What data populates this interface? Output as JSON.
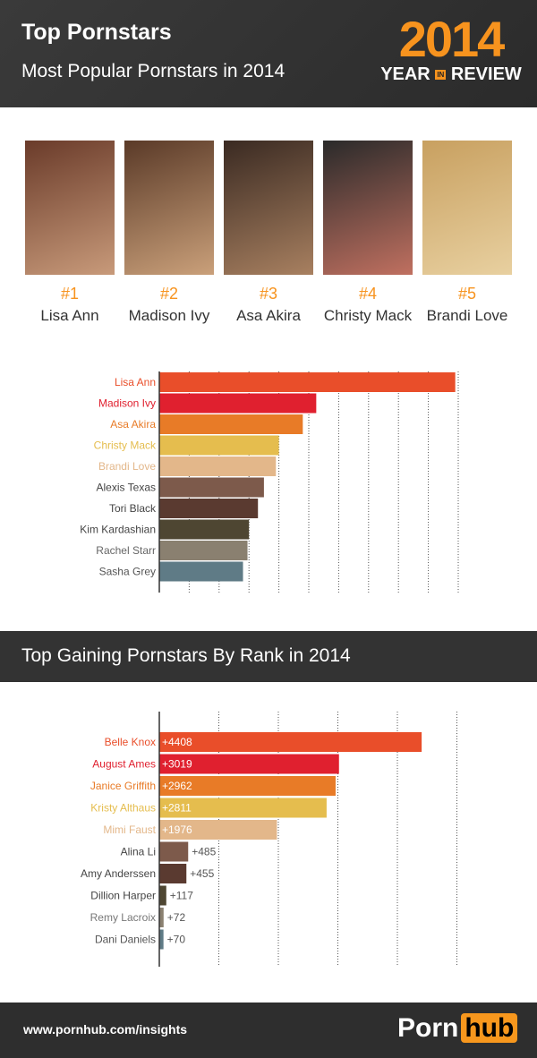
{
  "header": {
    "title": "Top Pornstars",
    "subtitle": "Most Popular Pornstars in 2014",
    "year": "2014",
    "year_label_left": "YEAR",
    "year_label_in": "IN",
    "year_label_right": "REVIEW"
  },
  "top5": [
    {
      "rank": "#1",
      "name": "Lisa Ann"
    },
    {
      "rank": "#2",
      "name": "Madison Ivy"
    },
    {
      "rank": "#3",
      "name": "Asa Akira"
    },
    {
      "rank": "#4",
      "name": "Christy Mack"
    },
    {
      "rank": "#5",
      "name": "Brandi Love"
    }
  ],
  "section2_title": "Top Gaining Pornstars By Rank in 2014",
  "footer": {
    "url": "www.pornhub.com/insights",
    "logo_left": "Porn",
    "logo_right": "hub"
  },
  "chart_data": [
    {
      "type": "bar",
      "orientation": "horizontal",
      "title": "Most Popular Pornstars in 2014",
      "value_units": "relative (gridline units)",
      "categories": [
        "Lisa Ann",
        "Madison Ivy",
        "Asa Akira",
        "Christy Mack",
        "Brandi Love",
        "Alexis Texas",
        "Tori Black",
        "Kim Kardashian",
        "Rachel Starr",
        "Sasha Grey"
      ],
      "values": [
        9.9,
        5.25,
        4.8,
        4.0,
        3.9,
        3.5,
        3.3,
        3.0,
        2.95,
        2.8
      ],
      "colors": [
        "#e94e2a",
        "#e0202f",
        "#e87b27",
        "#e5bd4e",
        "#e3b78a",
        "#7d5a4b",
        "#5a3a30",
        "#4e4632",
        "#8a8070",
        "#5f7b86"
      ],
      "label_colors": [
        "#e94e2a",
        "#e0202f",
        "#e87b27",
        "#e5bd4e",
        "#e3b78a",
        "#444444",
        "#444444",
        "#444444",
        "#666666",
        "#555555"
      ],
      "xlim": [
        0,
        10
      ],
      "grid": true
    },
    {
      "type": "bar",
      "orientation": "horizontal",
      "title": "Top Gaining Pornstars By Rank in 2014",
      "categories": [
        "Belle Knox",
        "August Ames",
        "Janice Griffith",
        "Kristy Althaus",
        "Mimi Faust",
        "Alina Li",
        "Amy Anderssen",
        "Dillion Harper",
        "Remy Lacroix",
        "Dani Daniels"
      ],
      "values": [
        4408,
        3019,
        2962,
        2811,
        1976,
        485,
        455,
        117,
        72,
        70
      ],
      "labels": [
        "+4408",
        "+3019",
        "+2962",
        "+2811",
        "+1976",
        "+485",
        "+455",
        "+117",
        "+72",
        "+70"
      ],
      "colors": [
        "#e94e2a",
        "#e0202f",
        "#e87b27",
        "#e5bd4e",
        "#e3b78a",
        "#7d5a4b",
        "#5a3a30",
        "#4e4632",
        "#8a8070",
        "#5f7b86"
      ],
      "label_colors": [
        "#e94e2a",
        "#e0202f",
        "#e87b27",
        "#e5bd4e",
        "#e3b78a",
        "#444444",
        "#444444",
        "#444444",
        "#777777",
        "#555555"
      ],
      "xlim": [
        0,
        5000
      ],
      "grid": true
    }
  ]
}
